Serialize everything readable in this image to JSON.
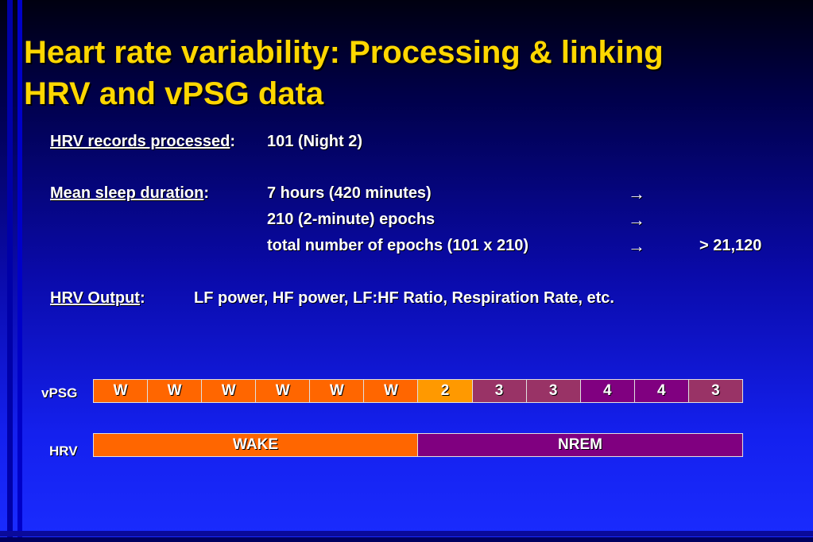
{
  "title": {
    "line1": "Heart rate variability: Processing & linking",
    "line2": "HRV and vPSG data"
  },
  "records": {
    "label": "HRV records processed",
    "colon": ":",
    "value": "101 (Night 2)"
  },
  "sleep": {
    "label": "Mean sleep duration",
    "colon": ":",
    "lines": [
      {
        "text": "7 hours (420 minutes)",
        "arrow": "→",
        "result": ""
      },
      {
        "text": "210 (2-minute) epochs",
        "arrow": "→",
        "result": ""
      },
      {
        "text": "total number of epochs (101 x 210)",
        "arrow": "→",
        "result": "> 21,120"
      }
    ]
  },
  "output": {
    "label": "HRV Output",
    "colon": ":",
    "value": "LF power, HF power, LF:HF Ratio, Respiration Rate, etc."
  },
  "vpsg": {
    "label": "vPSG",
    "cells": [
      {
        "stage": "W",
        "color": "#ff6600"
      },
      {
        "stage": "W",
        "color": "#ff6600"
      },
      {
        "stage": "W",
        "color": "#ff6600"
      },
      {
        "stage": "W",
        "color": "#ff6600"
      },
      {
        "stage": "W",
        "color": "#ff6600"
      },
      {
        "stage": "W",
        "color": "#ff6600"
      },
      {
        "stage": "2",
        "color": "#ff9900"
      },
      {
        "stage": "3",
        "color": "#993366"
      },
      {
        "stage": "3",
        "color": "#993366"
      },
      {
        "stage": "4",
        "color": "#800080"
      },
      {
        "stage": "4",
        "color": "#800080"
      },
      {
        "stage": "3",
        "color": "#993366"
      }
    ]
  },
  "hrv": {
    "label": "HRV",
    "wake": {
      "text": "WAKE",
      "color": "#ff6600"
    },
    "nrem": {
      "text": "NREM",
      "color": "#800080"
    }
  }
}
